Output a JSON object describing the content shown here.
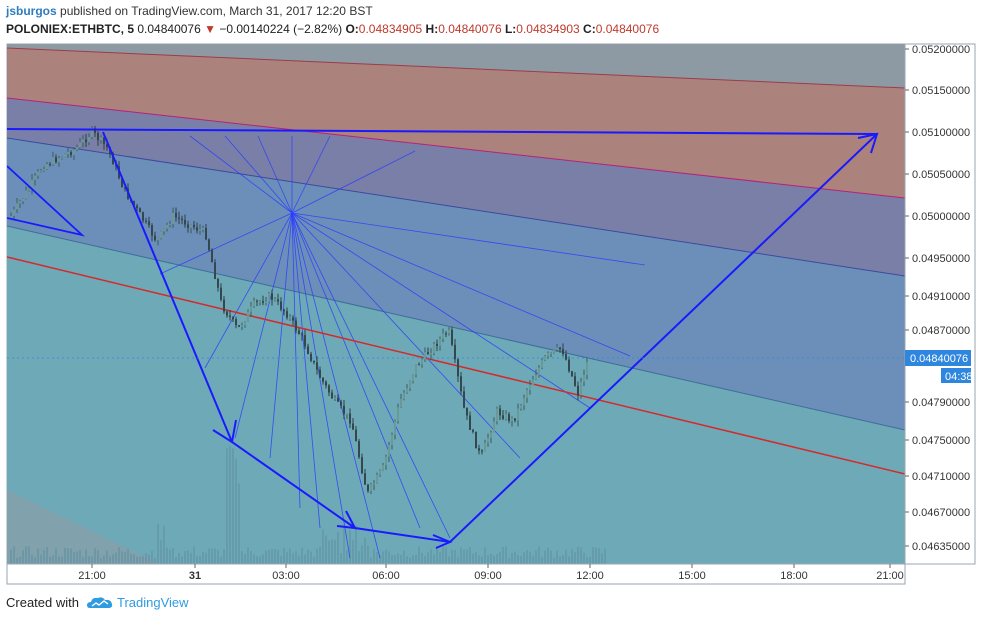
{
  "header": {
    "user": "jsburgos",
    "published_text": "published on TradingView.com, March 31, 2017 12:20 BST",
    "symbol": "POLONIEX:ETHBTC, 5",
    "last": "0.04840076",
    "change_arrow": "▼",
    "change": "−0.00140224 (−2.82%)",
    "o_label": "O:",
    "o_value": "0.04834905",
    "h_label": "H:",
    "h_value": "0.04840076",
    "l_label": "L:",
    "l_value": "0.04834903",
    "c_label": "C:",
    "c_value": "0.04840076"
  },
  "footer": {
    "created_with": "Created with",
    "brand": "TradingView",
    "logo_icon": "tradingview-cloud-icon"
  },
  "colors": {
    "blue_line": "#1a1aff",
    "red_line": "#d42a2a",
    "price_label_bg": "#2e86de"
  },
  "chart_data": {
    "type": "candlestick",
    "y_ticks": [
      "0.05200000",
      "0.05150000",
      "0.05100000",
      "0.05050000",
      "0.05000000",
      "0.04950000",
      "0.04910000",
      "0.04870000",
      "0.04790000",
      "0.04750000",
      "0.04710000",
      "0.04670000",
      "0.04635000"
    ],
    "y_range": [
      0.0462,
      0.0523
    ],
    "x_ticks": [
      "21:00",
      "31",
      "03:00",
      "06:00",
      "09:00",
      "12:00",
      "15:00",
      "18:00",
      "21:00"
    ],
    "last_price_label": "0.04840076",
    "countdown_label": "04:38",
    "price_path": [
      {
        "t": "18:30",
        "p": 0.05
      },
      {
        "t": "19:00",
        "p": 0.0503
      },
      {
        "t": "19:30",
        "p": 0.0506
      },
      {
        "t": "20:00",
        "p": 0.0507
      },
      {
        "t": "20:30",
        "p": 0.0508
      },
      {
        "t": "21:00",
        "p": 0.051
      },
      {
        "t": "21:30",
        "p": 0.0508
      },
      {
        "t": "22:00",
        "p": 0.0503
      },
      {
        "t": "22:30",
        "p": 0.05
      },
      {
        "t": "23:00",
        "p": 0.0497
      },
      {
        "t": "23:30",
        "p": 0.05
      },
      {
        "t": "00:00",
        "p": 0.0499
      },
      {
        "t": "00:30",
        "p": 0.0498
      },
      {
        "t": "01:00",
        "p": 0.049
      },
      {
        "t": "01:30",
        "p": 0.0487
      },
      {
        "t": "02:00",
        "p": 0.049
      },
      {
        "t": "02:30",
        "p": 0.0491
      },
      {
        "t": "03:00",
        "p": 0.0489
      },
      {
        "t": "03:30",
        "p": 0.0486
      },
      {
        "t": "04:00",
        "p": 0.0482
      },
      {
        "t": "04:30",
        "p": 0.0479
      },
      {
        "t": "05:00",
        "p": 0.0477
      },
      {
        "t": "05:30",
        "p": 0.0469
      },
      {
        "t": "06:00",
        "p": 0.0472
      },
      {
        "t": "06:30",
        "p": 0.0479
      },
      {
        "t": "07:00",
        "p": 0.0483
      },
      {
        "t": "07:30",
        "p": 0.0485
      },
      {
        "t": "08:00",
        "p": 0.0487
      },
      {
        "t": "08:30",
        "p": 0.0478
      },
      {
        "t": "09:00",
        "p": 0.0473
      },
      {
        "t": "09:30",
        "p": 0.0478
      },
      {
        "t": "10:00",
        "p": 0.0477
      },
      {
        "t": "10:30",
        "p": 0.0481
      },
      {
        "t": "11:00",
        "p": 0.0484
      },
      {
        "t": "11:30",
        "p": 0.0485
      },
      {
        "t": "12:00",
        "p": 0.048
      },
      {
        "t": "12:20",
        "p": 0.0484
      }
    ]
  }
}
